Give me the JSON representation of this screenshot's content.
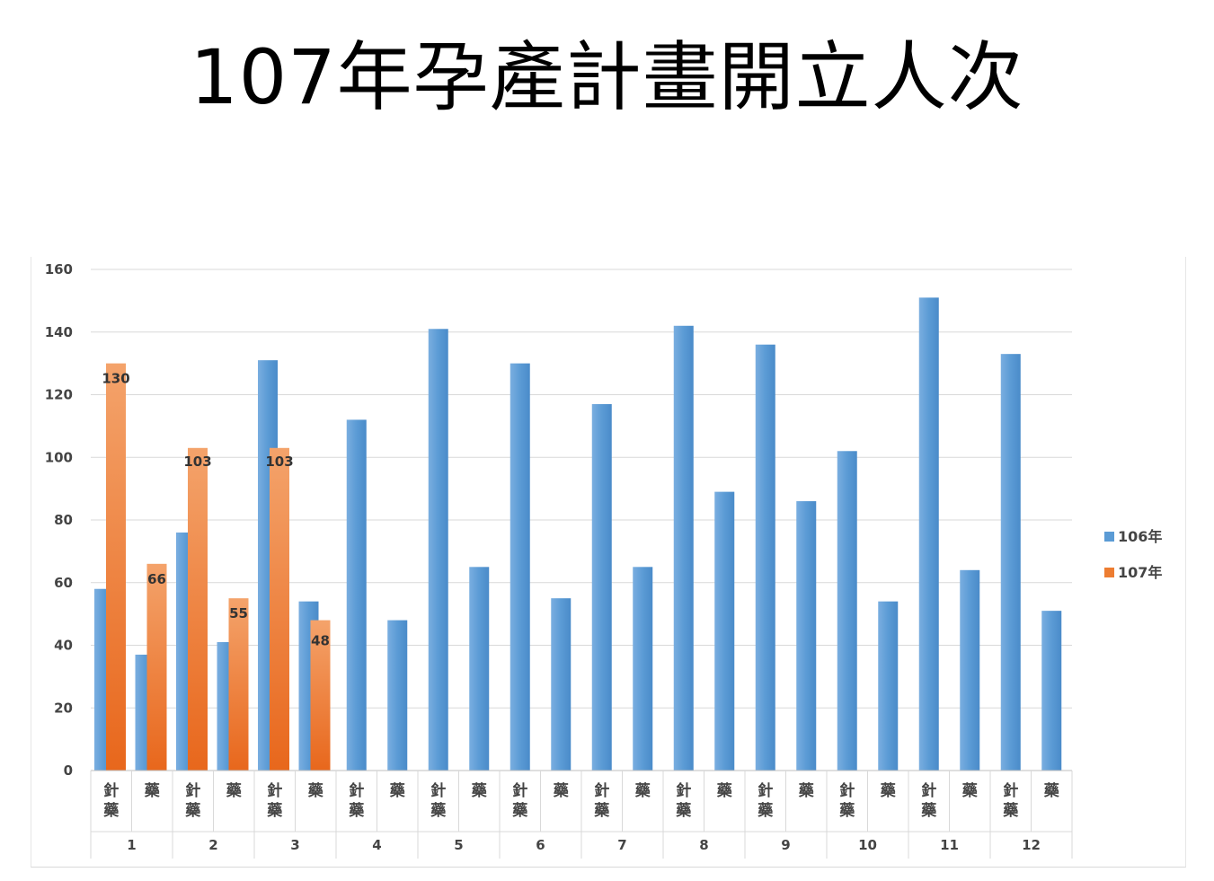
{
  "title": "107年孕產計畫開立人次",
  "chart_data": {
    "type": "bar",
    "title": "107年孕產計畫開立人次",
    "xlabel": "",
    "ylabel": "",
    "ylim": [
      0,
      160
    ],
    "yticks": [
      0,
      20,
      40,
      60,
      80,
      100,
      120,
      140,
      160
    ],
    "grid": true,
    "legend_position": "right",
    "months": [
      "1",
      "2",
      "3",
      "4",
      "5",
      "6",
      "7",
      "8",
      "9",
      "10",
      "11",
      "12"
    ],
    "sub_categories": [
      "針\n藥",
      "藥"
    ],
    "series": [
      {
        "name": "106年",
        "color": "#5b9bd5",
        "values": [
          58,
          37,
          76,
          41,
          131,
          54,
          112,
          48,
          141,
          65,
          130,
          55,
          117,
          65,
          142,
          89,
          136,
          86,
          102,
          54,
          151,
          64,
          133,
          51
        ]
      },
      {
        "name": "107年",
        "color": "#ed7d31",
        "values": [
          130,
          66,
          103,
          55,
          103,
          48,
          null,
          null,
          null,
          null,
          null,
          null,
          null,
          null,
          null,
          null,
          null,
          null,
          null,
          null,
          null,
          null,
          null,
          null
        ],
        "data_labels": [
          "130",
          "66",
          "103",
          "55",
          "103",
          "48"
        ]
      }
    ]
  }
}
